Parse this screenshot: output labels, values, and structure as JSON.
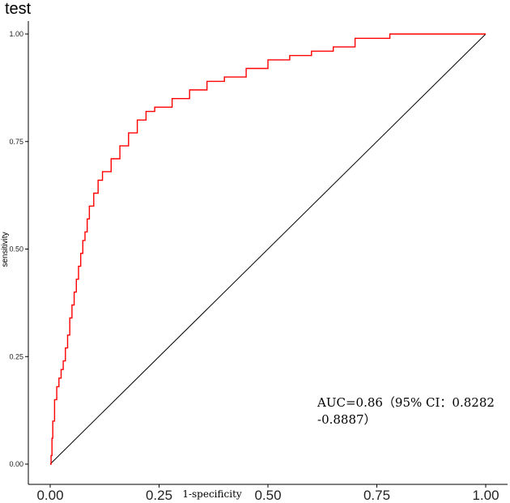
{
  "chart_data": {
    "type": "line",
    "title": "test",
    "xlabel": "1-specificity",
    "ylabel": "sensitivity",
    "xlim": [
      0,
      1
    ],
    "ylim": [
      0,
      1
    ],
    "x_ticks": [
      "0.00",
      "0.25",
      "0.50",
      "0.75",
      "1.00"
    ],
    "y_ticks": [
      "0.00",
      "0.25",
      "0.50",
      "0.75",
      "1.00"
    ],
    "grid": false,
    "colors": {
      "roc": "#ff0000",
      "reference": "#000000"
    },
    "annotation": [
      "AUC=0.86（95% CI：0.8282",
      "-0.8887）"
    ],
    "series": [
      {
        "values": [
          [
            0.0,
            0.0
          ],
          [
            0.002,
            0.02
          ],
          [
            0.004,
            0.06
          ],
          [
            0.006,
            0.1
          ],
          [
            0.01,
            0.15
          ],
          [
            0.015,
            0.18
          ],
          [
            0.02,
            0.2
          ],
          [
            0.025,
            0.22
          ],
          [
            0.03,
            0.24
          ],
          [
            0.035,
            0.27
          ],
          [
            0.04,
            0.3
          ],
          [
            0.045,
            0.34
          ],
          [
            0.05,
            0.37
          ],
          [
            0.055,
            0.4
          ],
          [
            0.06,
            0.43
          ],
          [
            0.065,
            0.46
          ],
          [
            0.07,
            0.49
          ],
          [
            0.075,
            0.52
          ],
          [
            0.08,
            0.54
          ],
          [
            0.085,
            0.57
          ],
          [
            0.09,
            0.6
          ],
          [
            0.1,
            0.63
          ],
          [
            0.11,
            0.66
          ],
          [
            0.12,
            0.68
          ],
          [
            0.14,
            0.71
          ],
          [
            0.16,
            0.74
          ],
          [
            0.18,
            0.77
          ],
          [
            0.2,
            0.8
          ],
          [
            0.22,
            0.82
          ],
          [
            0.24,
            0.83
          ],
          [
            0.28,
            0.85
          ],
          [
            0.32,
            0.87
          ],
          [
            0.36,
            0.89
          ],
          [
            0.4,
            0.9
          ],
          [
            0.45,
            0.92
          ],
          [
            0.5,
            0.94
          ],
          [
            0.55,
            0.95
          ],
          [
            0.6,
            0.96
          ],
          [
            0.65,
            0.97
          ],
          [
            0.7,
            0.99
          ],
          [
            0.78,
            1.0
          ],
          [
            1.0,
            1.0
          ]
        ]
      },
      {
        "values": [
          [
            0.0,
            0.0
          ],
          [
            1.0,
            1.0
          ]
        ]
      }
    ]
  }
}
